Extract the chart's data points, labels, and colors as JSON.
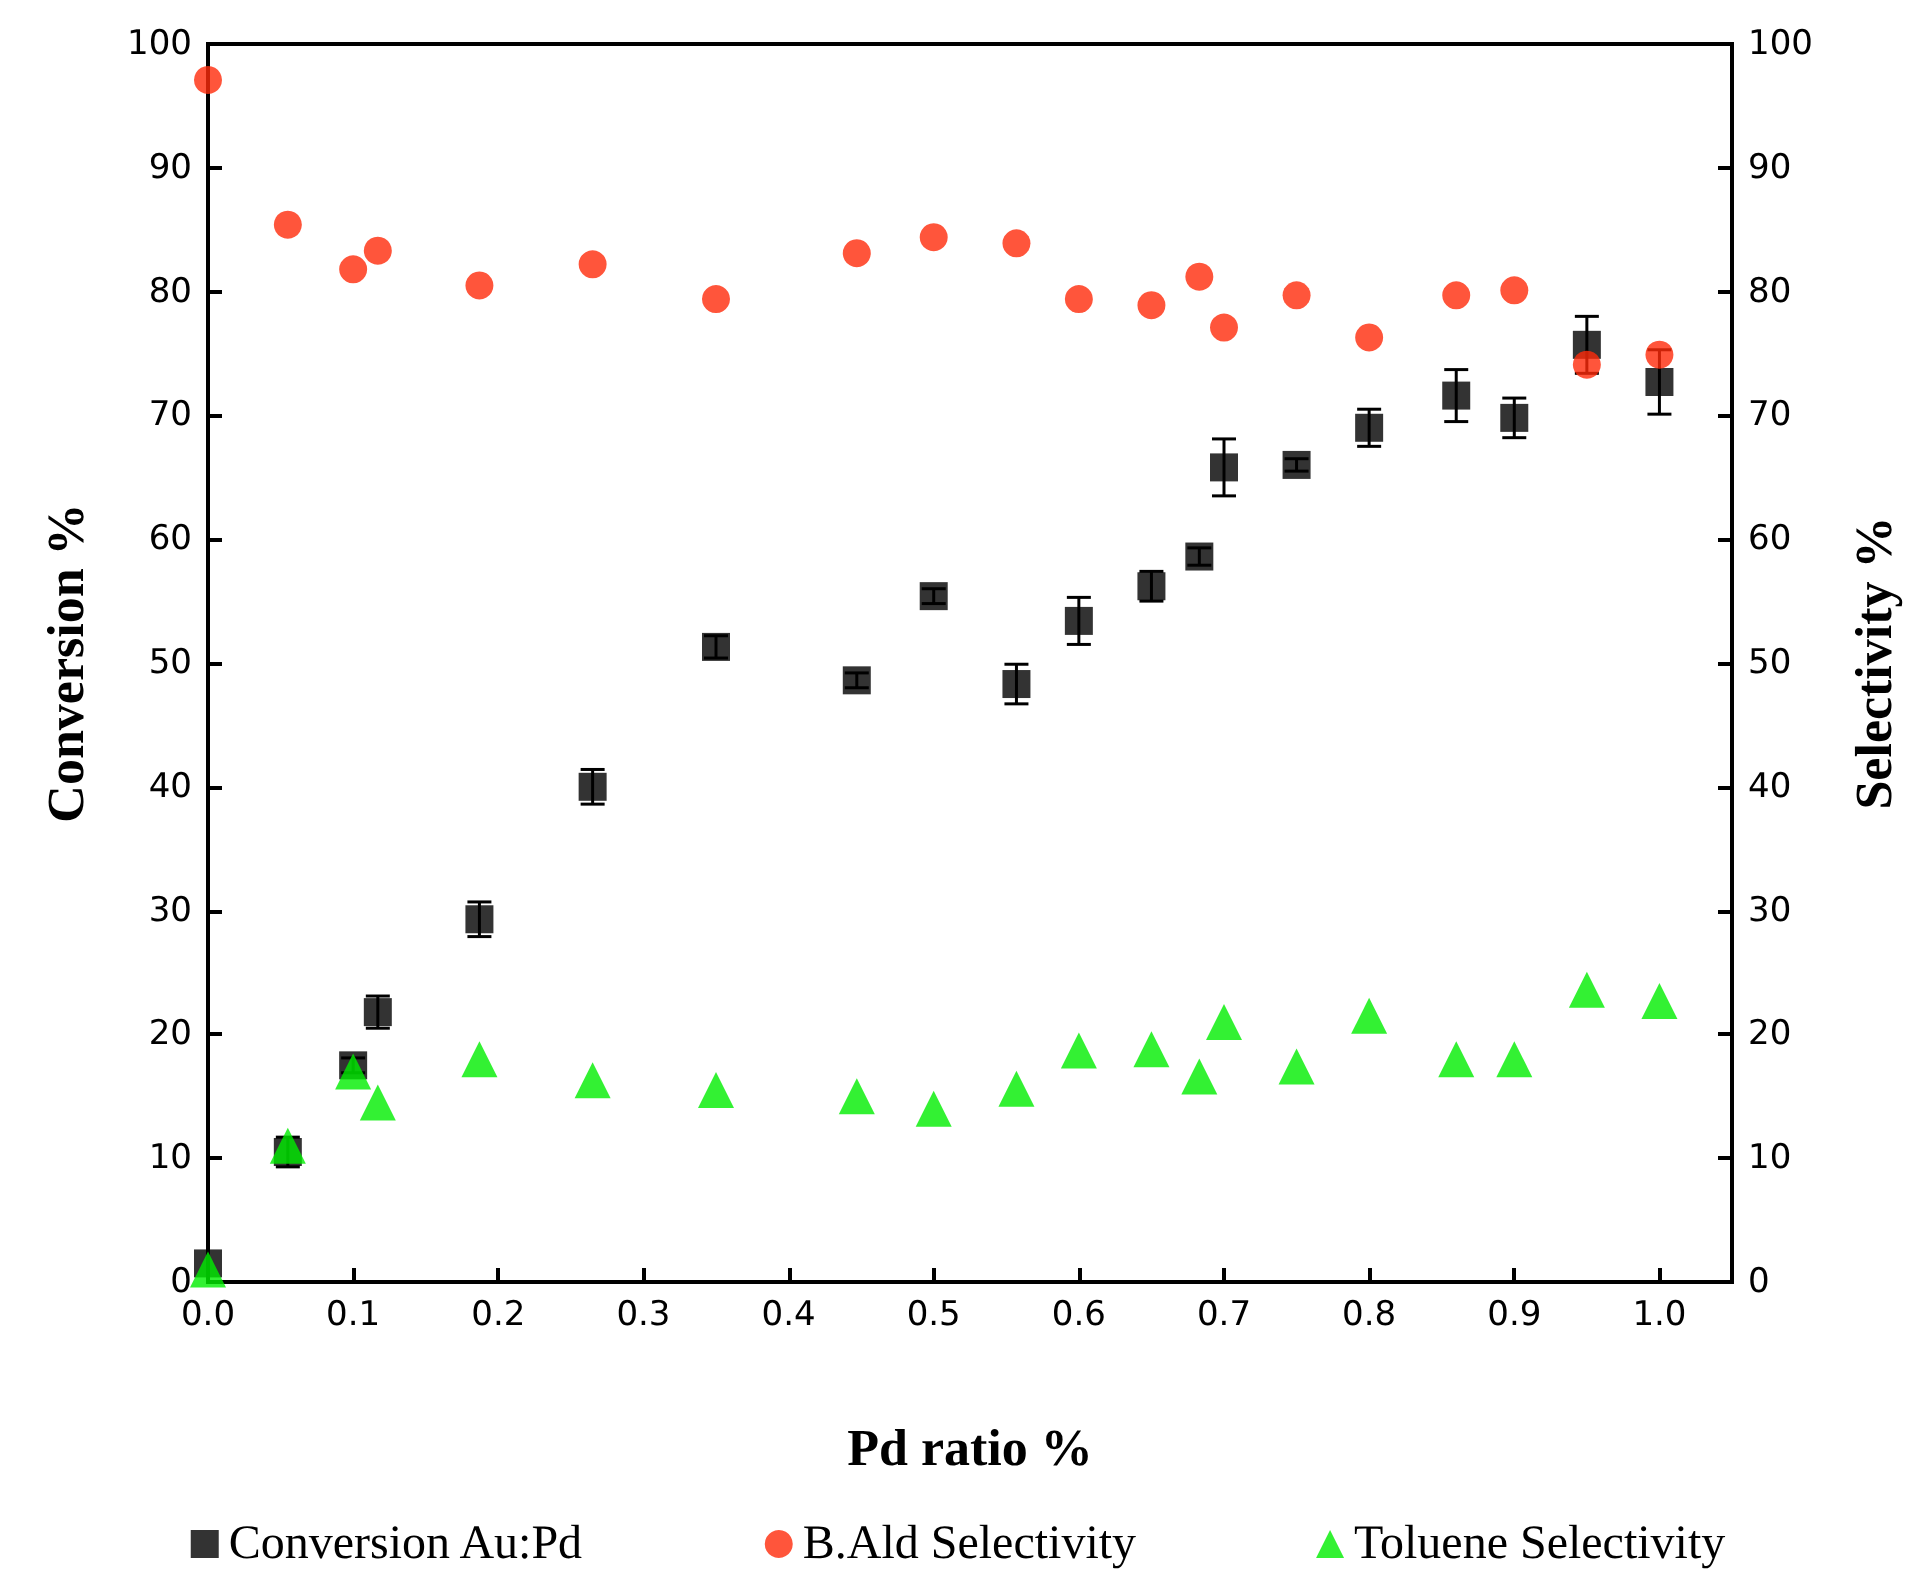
{
  "chart_data": {
    "type": "scatter",
    "xlabel": "Pd ratio %",
    "ylabel": "Conversion %",
    "y2label": "Selectivity %",
    "x": [
      0,
      0.055,
      0.1,
      0.117,
      0.187,
      0.265,
      0.35,
      0.447,
      0.5,
      0.557,
      0.6,
      0.65,
      0.683,
      0.7,
      0.75,
      0.8,
      0.86,
      0.9,
      0.95,
      1.0
    ],
    "xlim": [
      0,
      1.05
    ],
    "xticks": [
      {
        "value": 0,
        "label": "0.0"
      },
      0.1,
      0.2,
      0.3,
      0.4,
      0.5,
      0.6,
      0.7,
      0.8,
      0.9,
      {
        "value": 1,
        "label": "1.0"
      }
    ],
    "ylim": [
      0,
      100
    ],
    "yticks": [
      0,
      10,
      20,
      30,
      40,
      50,
      60,
      70,
      80,
      90,
      100
    ],
    "y2lim": [
      0,
      100
    ],
    "y2ticks": [
      0,
      10,
      20,
      30,
      40,
      50,
      60,
      70,
      80,
      90,
      100
    ],
    "grid": false,
    "legend": "bottom",
    "series": [
      {
        "name": "Conversion Au:Pd",
        "color": "#000000",
        "marker": "square",
        "values": [
          1.5,
          10.5,
          17.5,
          21.8,
          29.3,
          40,
          51.3,
          48.6,
          55.4,
          48.3,
          53.4,
          56.2,
          58.6,
          65.8,
          66,
          69,
          71.6,
          69.8,
          75.7,
          72.7
        ],
        "errors": [
          null,
          1.2,
          0.6,
          1.3,
          1.4,
          1.4,
          0.9,
          0.6,
          0.6,
          1.6,
          1.9,
          1.2,
          0.7,
          2.3,
          0.5,
          1.5,
          2.1,
          1.6,
          2.3,
          2.6
        ]
      },
      {
        "name": "B.Ald Selectivity",
        "color": "#ff2a0a",
        "marker": "circle",
        "values": [
          97.1,
          85.4,
          81.8,
          83.3,
          80.5,
          82.2,
          79.4,
          83.1,
          84.4,
          83.9,
          79.4,
          78.9,
          81.2,
          77.1,
          79.7,
          76.3,
          79.7,
          80.1,
          74.1,
          74.9
        ]
      },
      {
        "name": "Toluene Selectivity",
        "color": "#00ee00",
        "marker": "triangle",
        "values": [
          1,
          11,
          17,
          14.5,
          18,
          16.3,
          15.5,
          15,
          14,
          15.6,
          18.7,
          18.8,
          16.6,
          21,
          17.4,
          21.5,
          18,
          18,
          23.6,
          22.7
        ]
      }
    ]
  }
}
